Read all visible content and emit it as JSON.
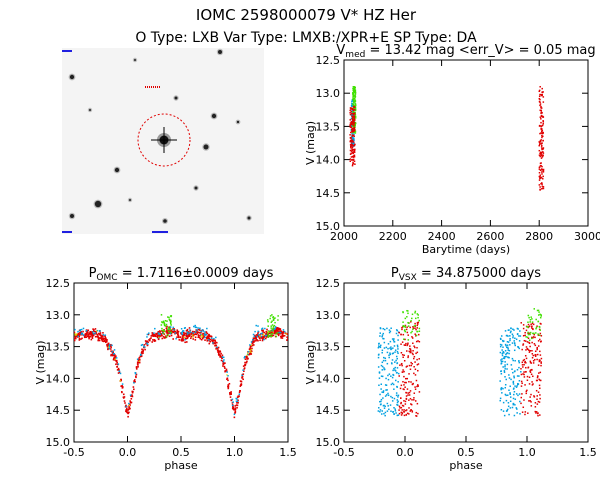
{
  "header": {
    "title_line1": "IOMC 2598000079    V* HZ Her",
    "title_line2": "O Type: LXB  Var Type: LMXB:/XPR+E   SP Type: DA"
  },
  "colors": {
    "red": "#e00000",
    "blue": "#00a0e0",
    "green": "#40e000",
    "yellow": "#e0e000",
    "axis": "#000000"
  },
  "chart_data": [
    {
      "id": "image-cutout",
      "type": "other",
      "description_label": "",
      "title": ""
    },
    {
      "id": "light-curve",
      "type": "scatter",
      "title_parts": {
        "prefix": "V",
        "sub": "med",
        "suffix": " = 13.42 mag <err_V> = 0.05 mag"
      },
      "xlabel": "Barytime (days)",
      "ylabel": "V (mag)",
      "xlim": [
        2000,
        3000
      ],
      "ylim": [
        15.0,
        12.5
      ],
      "xticks": [
        2000,
        2200,
        2400,
        2600,
        2800,
        3000
      ],
      "yticks": [
        12.5,
        13.0,
        13.5,
        14.0,
        14.5,
        15.0
      ],
      "series": [
        {
          "name": "blue",
          "color": "blue",
          "clusters": [
            {
              "x": [
                2030,
                2042
              ],
              "y": [
                13.1,
                13.8
              ]
            }
          ]
        },
        {
          "name": "green",
          "color": "green",
          "clusters": [
            {
              "x": [
                2036,
                2048
              ],
              "y": [
                12.9,
                13.6
              ]
            }
          ]
        },
        {
          "name": "red",
          "color": "red",
          "clusters": [
            {
              "x": [
                2025,
                2045
              ],
              "y": [
                13.2,
                14.1
              ]
            },
            {
              "x": [
                2800,
                2818
              ],
              "y": [
                12.9,
                14.5
              ]
            }
          ]
        }
      ]
    },
    {
      "id": "phase-omc",
      "type": "scatter",
      "title_parts": {
        "prefix": "P",
        "sub": "OMC",
        "suffix": " = 1.7116±0.0009 days"
      },
      "xlabel": "phase",
      "ylabel": "V (mag)",
      "xlim": [
        -0.5,
        1.5
      ],
      "ylim": [
        15.0,
        12.5
      ],
      "xticks": [
        -0.5,
        0.0,
        0.5,
        1.0,
        1.5
      ],
      "yticks": [
        12.5,
        13.0,
        13.5,
        14.0,
        14.5,
        15.0
      ],
      "model": {
        "phase_points": [
          0.0,
          0.05,
          0.1,
          0.2,
          0.3,
          0.4,
          0.5,
          0.6,
          0.7,
          0.8,
          0.9,
          0.95,
          1.0
        ],
        "mag_points": [
          14.55,
          14.2,
          13.75,
          13.35,
          13.32,
          13.25,
          13.35,
          13.3,
          13.3,
          13.4,
          13.75,
          14.15,
          14.55
        ]
      }
    },
    {
      "id": "phase-vsx",
      "type": "scatter",
      "title_parts": {
        "prefix": "P",
        "sub": "VSX",
        "suffix": " = 34.875000 days"
      },
      "xlabel": "phase",
      "ylabel": "V (mag)",
      "xlim": [
        -0.5,
        1.5
      ],
      "ylim": [
        15.0,
        12.5
      ],
      "xticks": [
        -0.5,
        0.0,
        0.5,
        1.0,
        1.5
      ],
      "yticks": [
        12.5,
        13.0,
        13.5,
        14.0,
        14.5,
        15.0
      ],
      "groups": [
        {
          "color": "blue",
          "x": [
            -0.22,
            -0.05
          ],
          "y": [
            13.2,
            14.6
          ]
        },
        {
          "color": "red",
          "x": [
            -0.05,
            0.12
          ],
          "y": [
            13.1,
            14.6
          ]
        },
        {
          "color": "green",
          "x": [
            -0.02,
            0.12
          ],
          "y": [
            12.9,
            13.4
          ]
        },
        {
          "color": "blue",
          "x": [
            0.78,
            0.95
          ],
          "y": [
            13.2,
            14.6
          ]
        },
        {
          "color": "red",
          "x": [
            0.95,
            1.12
          ],
          "y": [
            13.1,
            14.6
          ]
        },
        {
          "color": "green",
          "x": [
            0.98,
            1.12
          ],
          "y": [
            12.9,
            13.4
          ]
        }
      ]
    }
  ]
}
